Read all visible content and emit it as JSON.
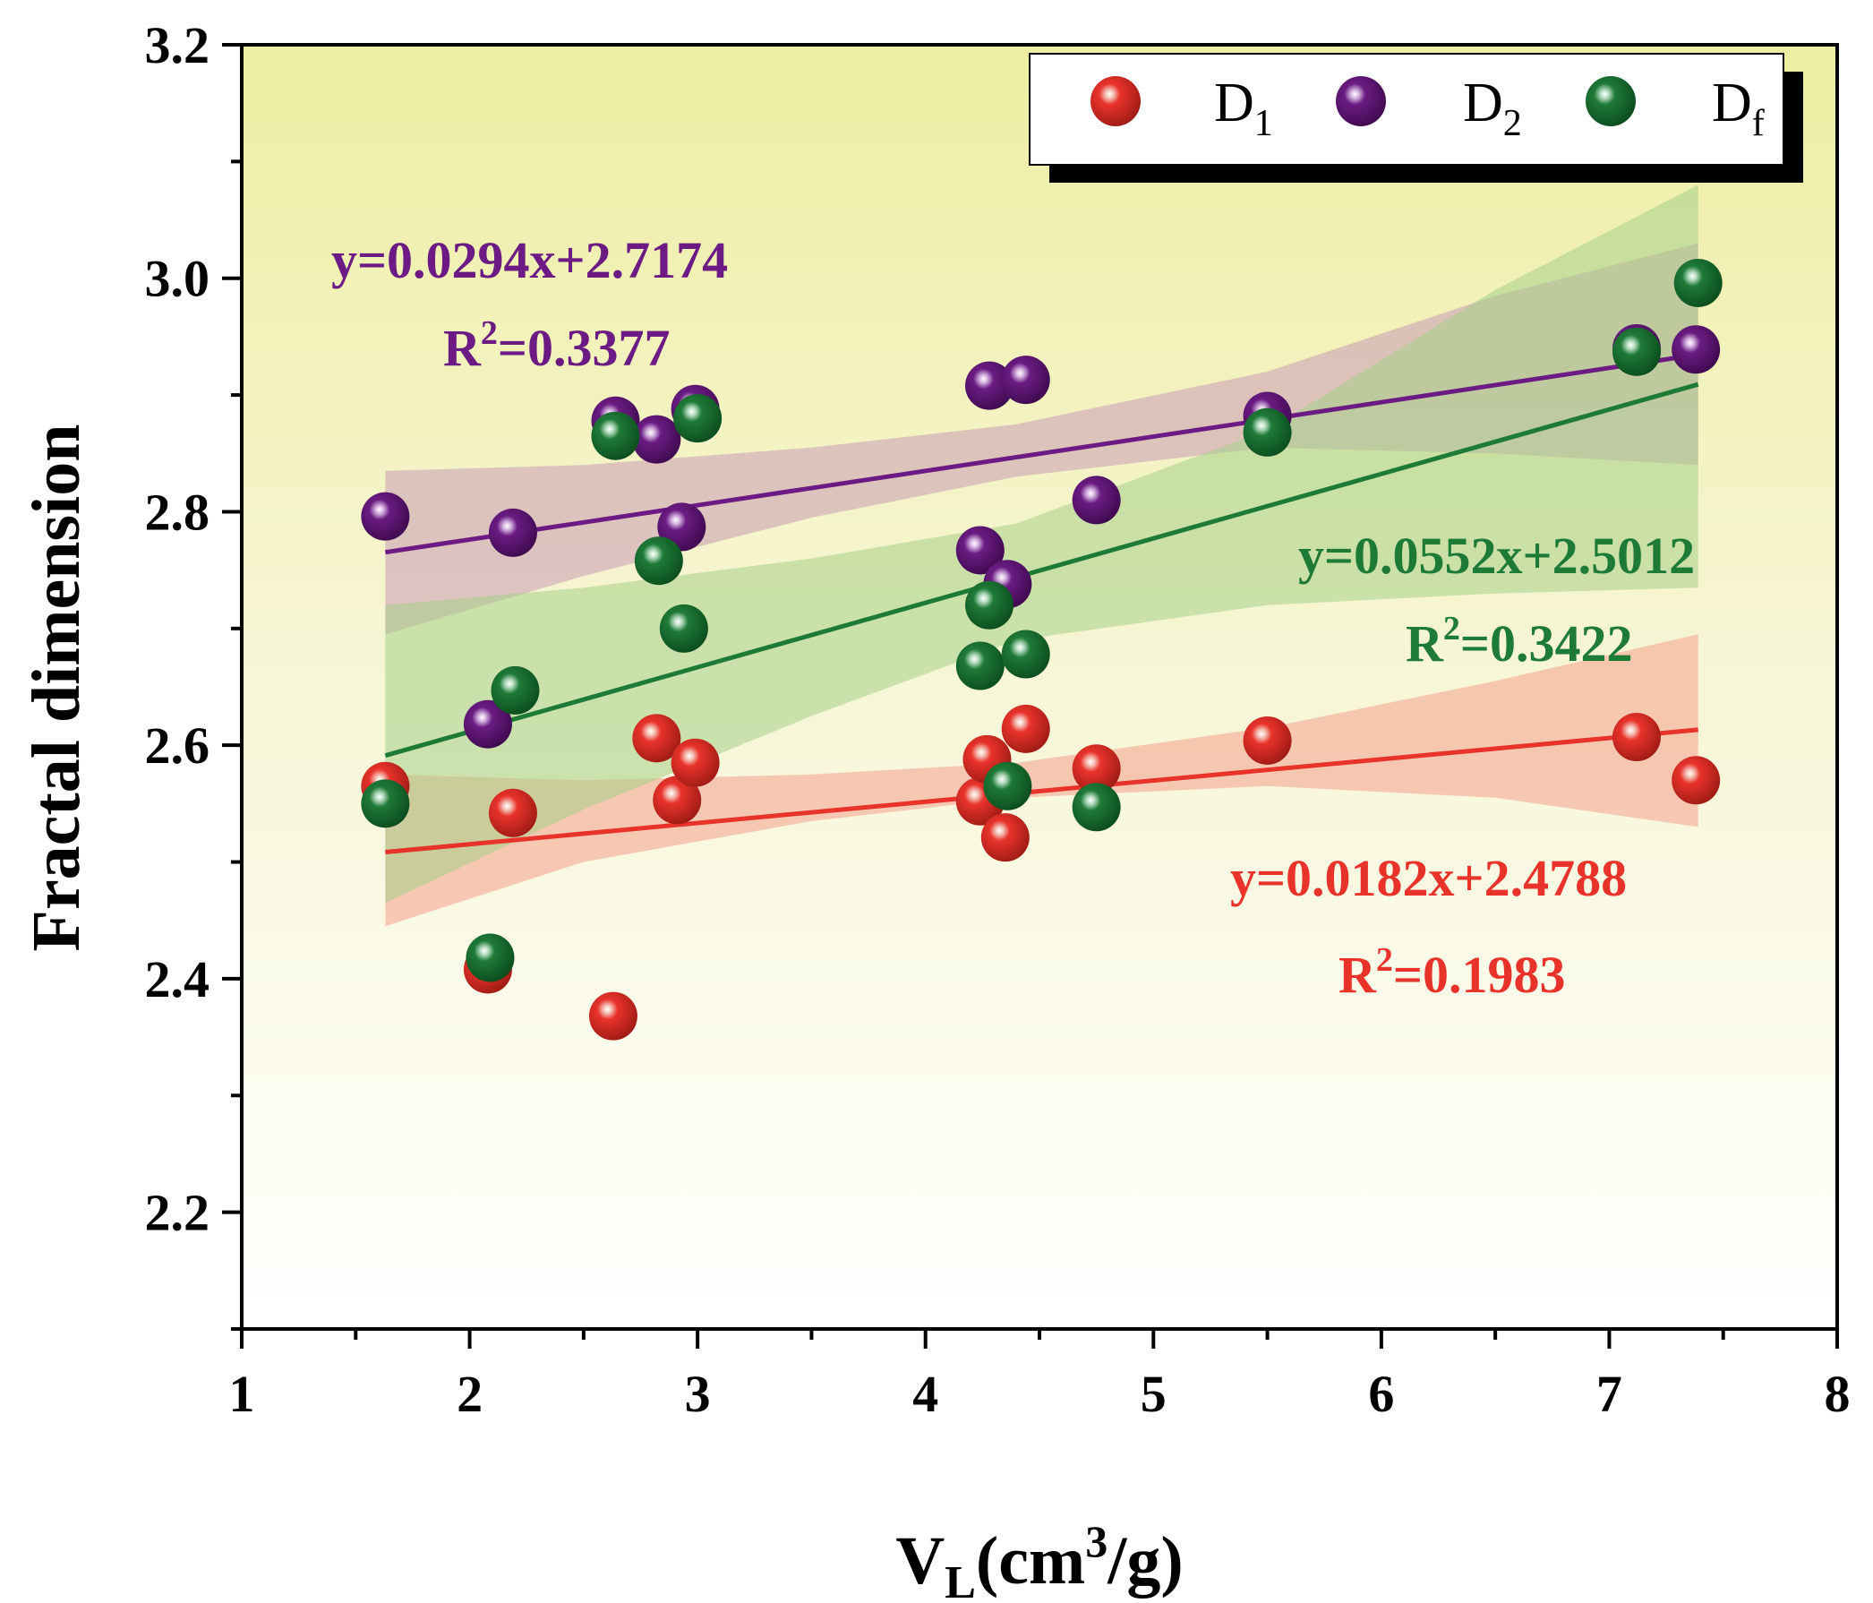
{
  "chart_data": {
    "type": "scatter",
    "xlabel_main": "V",
    "xlabel_sub": "L",
    "xlabel_rest": "(cm",
    "xlabel_sup": "3",
    "xlabel_end": "/g)",
    "ylabel": "Fractal dimension",
    "xlim": [
      1,
      8
    ],
    "ylim": [
      2.1,
      3.2
    ],
    "x_ticks": [
      1,
      2,
      3,
      4,
      5,
      6,
      7,
      8
    ],
    "x_tick_labels": [
      "1",
      "2",
      "3",
      "4",
      "5",
      "6",
      "7",
      "8"
    ],
    "y_ticks": [
      2.2,
      2.4,
      2.6,
      2.8,
      3.0,
      3.2
    ],
    "y_tick_labels": [
      "2.2",
      "2.4",
      "2.6",
      "2.8",
      "3.0",
      "3.2"
    ],
    "legend_position": "top-right",
    "series": [
      {
        "name": "D1",
        "label_main": "D",
        "label_sub": "1",
        "color": "#e8332b",
        "band_color": "#f4a08c",
        "equation": "y=0.0182x+2.4788",
        "r2_label": "R",
        "r2_sup": "2",
        "r2_value": "=0.1983",
        "fit": {
          "slope": 0.0182,
          "intercept": 2.4788,
          "x_range": [
            1.63,
            7.39
          ]
        },
        "band": {
          "x": [
            1.63,
            2.5,
            3.5,
            4.4,
            5.5,
            6.5,
            7.39
          ],
          "lower": [
            2.445,
            2.5,
            2.535,
            2.555,
            2.565,
            2.555,
            2.53
          ],
          "upper": [
            2.575,
            2.57,
            2.575,
            2.585,
            2.615,
            2.655,
            2.695
          ]
        },
        "points": [
          [
            1.63,
            2.565
          ],
          [
            2.08,
            2.408
          ],
          [
            2.19,
            2.542
          ],
          [
            2.63,
            2.368
          ],
          [
            2.82,
            2.606
          ],
          [
            2.91,
            2.553
          ],
          [
            2.99,
            2.585
          ],
          [
            4.24,
            2.552
          ],
          [
            4.27,
            2.588
          ],
          [
            4.35,
            2.521
          ],
          [
            4.44,
            2.614
          ],
          [
            4.75,
            2.58
          ],
          [
            5.5,
            2.604
          ],
          [
            7.12,
            2.607
          ],
          [
            7.38,
            2.57
          ]
        ]
      },
      {
        "name": "D2",
        "label_main": "D",
        "label_sub": "2",
        "color": "#6b1b83",
        "band_color": "#c89bb4",
        "equation": "y=0.0294x+2.7174",
        "r2_label": "R",
        "r2_sup": "2",
        "r2_value": "=0.3377",
        "fit": {
          "slope": 0.0294,
          "intercept": 2.7174,
          "x_range": [
            1.63,
            7.39
          ]
        },
        "band": {
          "x": [
            1.63,
            2.5,
            3.5,
            4.4,
            5.5,
            6.5,
            7.39
          ],
          "lower": [
            2.695,
            2.745,
            2.795,
            2.83,
            2.855,
            2.85,
            2.84
          ],
          "upper": [
            2.835,
            2.84,
            2.855,
            2.875,
            2.92,
            2.985,
            3.03
          ]
        },
        "points": [
          [
            1.63,
            2.796
          ],
          [
            2.08,
            2.618
          ],
          [
            2.19,
            2.782
          ],
          [
            2.64,
            2.878
          ],
          [
            2.82,
            2.862
          ],
          [
            2.93,
            2.787
          ],
          [
            2.99,
            2.888
          ],
          [
            4.24,
            2.767
          ],
          [
            4.28,
            2.908
          ],
          [
            4.36,
            2.738
          ],
          [
            4.44,
            2.913
          ],
          [
            4.75,
            2.81
          ],
          [
            5.5,
            2.882
          ],
          [
            7.12,
            2.94
          ],
          [
            7.38,
            2.939
          ]
        ]
      },
      {
        "name": "Df",
        "label_main": "D",
        "label_sub": "f",
        "color": "#1e7a37",
        "band_color": "#a5cf88",
        "equation": "y=0.0552x+2.5012",
        "r2_label": "R",
        "r2_sup": "2",
        "r2_value": "=0.3422",
        "fit": {
          "slope": 0.0552,
          "intercept": 2.5012,
          "x_range": [
            1.63,
            7.39
          ]
        },
        "band": {
          "x": [
            1.63,
            2.5,
            3.5,
            4.4,
            5.5,
            6.5,
            7.39
          ],
          "lower": [
            2.465,
            2.545,
            2.625,
            2.69,
            2.72,
            2.73,
            2.735
          ],
          "upper": [
            2.72,
            2.735,
            2.76,
            2.79,
            2.87,
            2.99,
            3.08
          ]
        },
        "points": [
          [
            1.63,
            2.55
          ],
          [
            2.09,
            2.418
          ],
          [
            2.2,
            2.647
          ],
          [
            2.64,
            2.865
          ],
          [
            2.83,
            2.758
          ],
          [
            2.94,
            2.7
          ],
          [
            3.0,
            2.88
          ],
          [
            4.24,
            2.668
          ],
          [
            4.28,
            2.72
          ],
          [
            4.36,
            2.565
          ],
          [
            4.44,
            2.678
          ],
          [
            4.75,
            2.547
          ],
          [
            5.5,
            2.868
          ],
          [
            7.12,
            2.937
          ],
          [
            7.39,
            2.996
          ]
        ]
      }
    ]
  }
}
